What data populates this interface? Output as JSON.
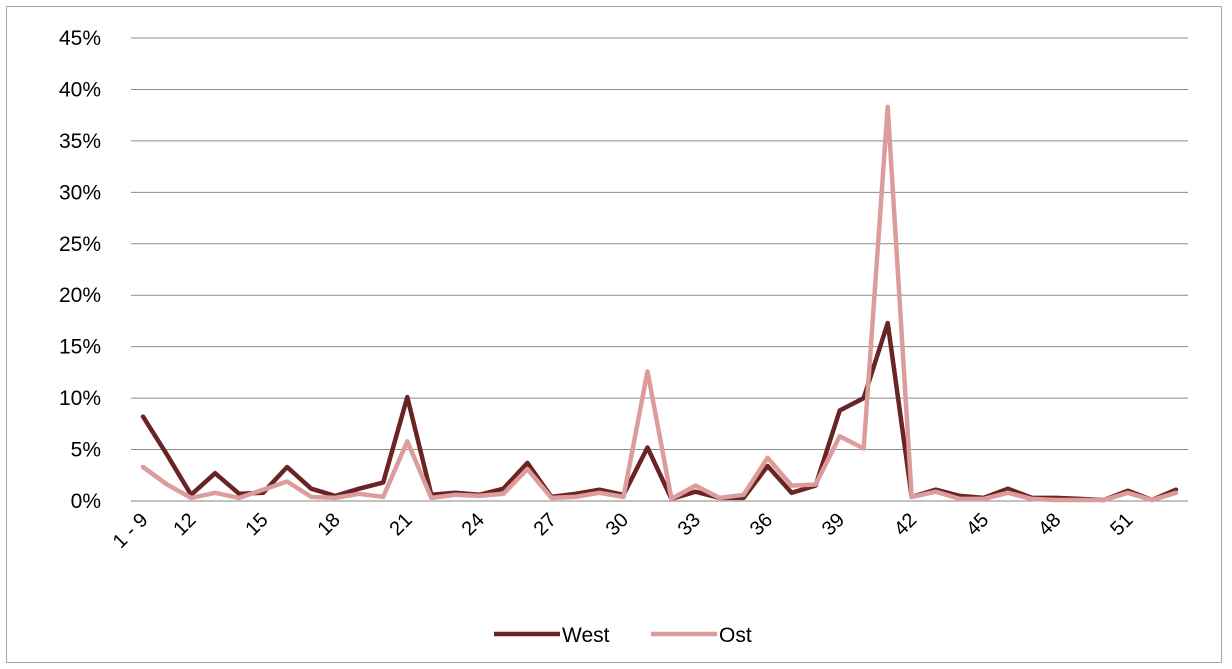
{
  "chart_data": {
    "type": "line",
    "title": "",
    "xlabel": "",
    "ylabel": "",
    "x_tick_labels": [
      "1 - 9",
      "12",
      "15",
      "18",
      "21",
      "24",
      "27",
      "30",
      "33",
      "36",
      "39",
      "42",
      "45",
      "48",
      "51"
    ],
    "y_tick_labels": [
      "0%",
      "5%",
      "10%",
      "15%",
      "20%",
      "25%",
      "30%",
      "35%",
      "40%",
      "45%"
    ],
    "ylim": [
      0,
      45
    ],
    "grid": "horizontal",
    "legend_position": "bottom",
    "series": [
      {
        "name": "West",
        "color": "#6b2424",
        "values": [
          8.2,
          4.5,
          0.6,
          2.7,
          0.7,
          0.8,
          3.3,
          1.2,
          0.5,
          1.2,
          1.8,
          10.1,
          0.6,
          0.8,
          0.6,
          1.2,
          3.7,
          0.4,
          0.7,
          1.1,
          0.6,
          5.2,
          0.2,
          0.9,
          0.3,
          0.3,
          3.4,
          0.8,
          1.5,
          8.8,
          10.0,
          17.3,
          0.4,
          1.1,
          0.5,
          0.3,
          1.2,
          0.3,
          0.3,
          0.2,
          0.1,
          1.0,
          0.1,
          1.1
        ]
      },
      {
        "name": "Ost",
        "color": "#dc9c9c",
        "values": [
          3.3,
          1.6,
          0.3,
          0.8,
          0.3,
          1.1,
          1.9,
          0.4,
          0.3,
          0.7,
          0.4,
          5.8,
          0.3,
          0.6,
          0.5,
          0.7,
          3.1,
          0.3,
          0.4,
          0.8,
          0.4,
          12.6,
          0.2,
          1.5,
          0.3,
          0.6,
          4.2,
          1.5,
          1.6,
          6.3,
          5.1,
          38.3,
          0.4,
          0.9,
          0.2,
          0.2,
          0.8,
          0.2,
          0.1,
          0.1,
          0.1,
          0.8,
          0.1,
          0.8
        ]
      }
    ]
  }
}
